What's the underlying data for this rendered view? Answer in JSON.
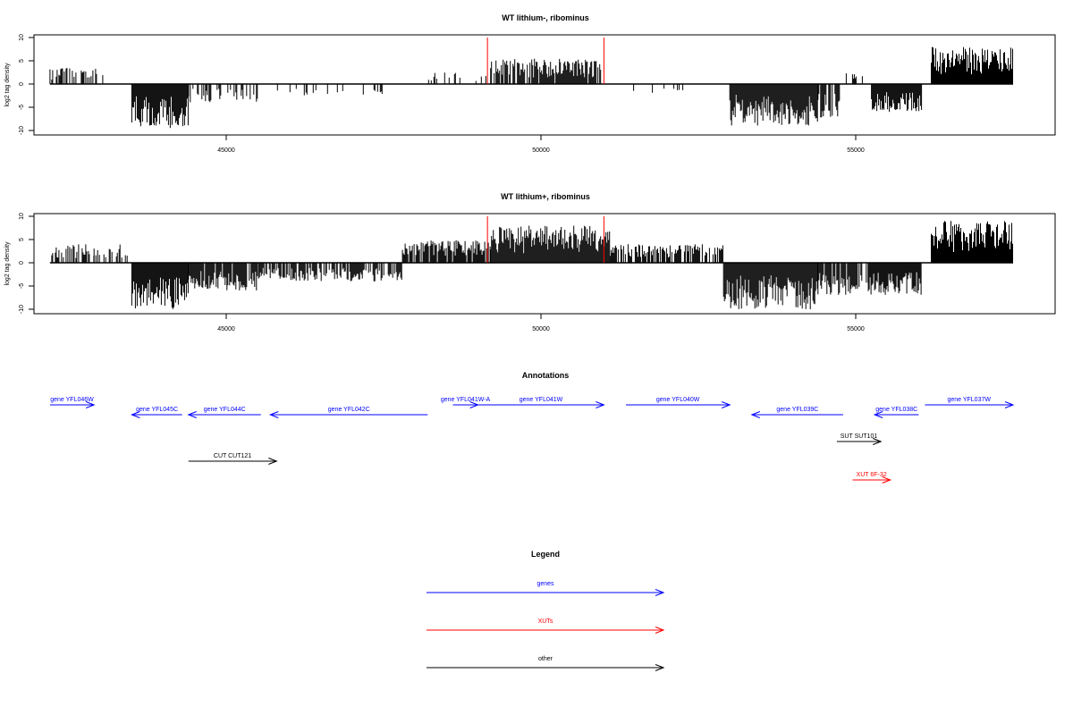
{
  "chart_data": [
    {
      "type": "bar",
      "title": "WT lithium-, ribominus",
      "ylabel": "log2 tag density",
      "xlim": [
        42000,
        58300
      ],
      "ylim": [
        -11,
        11
      ],
      "x_ticks": [
        "45000",
        "50000",
        "55000"
      ],
      "y_ticks": [
        "10",
        "5",
        "0",
        "-5",
        "-10"
      ],
      "markers": [
        49150,
        51000
      ],
      "segments": [
        {
          "from": 42200,
          "to": 43050,
          "sign": 1,
          "peak": 3.5,
          "density": 0.35
        },
        {
          "from": 43500,
          "to": 44400,
          "sign": -1,
          "peak": 9.5,
          "density": 1.0
        },
        {
          "from": 44400,
          "to": 45500,
          "sign": -1,
          "peak": 4,
          "density": 0.35
        },
        {
          "from": 45800,
          "to": 47500,
          "sign": -1,
          "peak": 2.5,
          "density": 0.15
        },
        {
          "from": 48200,
          "to": 49200,
          "sign": 1,
          "peak": 2.5,
          "density": 0.2
        },
        {
          "from": 49200,
          "to": 50950,
          "sign": 1,
          "peak": 5.5,
          "density": 0.9
        },
        {
          "from": 51400,
          "to": 52300,
          "sign": -1,
          "peak": 2,
          "density": 0.08
        },
        {
          "from": 53000,
          "to": 54400,
          "sign": -1,
          "peak": 9,
          "density": 1.0
        },
        {
          "from": 54400,
          "to": 54750,
          "sign": -1,
          "peak": 7.5,
          "density": 0.9
        },
        {
          "from": 54850,
          "to": 55150,
          "sign": 1,
          "peak": 2.5,
          "density": 0.2
        },
        {
          "from": 55250,
          "to": 56050,
          "sign": -1,
          "peak": 6,
          "density": 1.0
        },
        {
          "from": 56200,
          "to": 57500,
          "sign": 1,
          "peak": 8,
          "density": 1.0
        }
      ]
    },
    {
      "type": "bar",
      "title": "WT lithium+, ribominus",
      "ylabel": "log2 tag density",
      "xlim": [
        42000,
        58300
      ],
      "ylim": [
        -11,
        11
      ],
      "x_ticks": [
        "45000",
        "50000",
        "55000"
      ],
      "y_ticks": [
        "10",
        "5",
        "0",
        "-5",
        "-10"
      ],
      "markers": [
        49150,
        51000
      ],
      "segments": [
        {
          "from": 42200,
          "to": 42900,
          "sign": 1,
          "peak": 4,
          "density": 0.6
        },
        {
          "from": 42900,
          "to": 43450,
          "sign": 1,
          "peak": 4,
          "density": 0.6
        },
        {
          "from": 43500,
          "to": 44400,
          "sign": -1,
          "peak": 10,
          "density": 1.0
        },
        {
          "from": 44400,
          "to": 45500,
          "sign": -1,
          "peak": 6,
          "density": 0.9
        },
        {
          "from": 45500,
          "to": 47800,
          "sign": -1,
          "peak": 4,
          "density": 0.7
        },
        {
          "from": 47800,
          "to": 49200,
          "sign": 1,
          "peak": 5,
          "density": 0.9
        },
        {
          "from": 49200,
          "to": 51100,
          "sign": 1,
          "peak": 8,
          "density": 1.0
        },
        {
          "from": 51100,
          "to": 52900,
          "sign": 1,
          "peak": 4,
          "density": 0.7
        },
        {
          "from": 52900,
          "to": 54400,
          "sign": -1,
          "peak": 10,
          "density": 1.0
        },
        {
          "from": 54400,
          "to": 55200,
          "sign": -1,
          "peak": 7,
          "density": 0.8
        },
        {
          "from": 55200,
          "to": 56050,
          "sign": -1,
          "peak": 7,
          "density": 1.0
        },
        {
          "from": 56200,
          "to": 57500,
          "sign": 1,
          "peak": 9,
          "density": 1.0
        }
      ]
    }
  ],
  "annotations": {
    "title": "Annotations",
    "items": [
      {
        "label": "gene YFL046W",
        "color": "#0000ff",
        "dir": "right",
        "from": 42200,
        "to": 42900,
        "row": 0
      },
      {
        "label": "gene YFL045C",
        "color": "#0000ff",
        "dir": "left",
        "from": 43500,
        "to": 44300,
        "row": 1
      },
      {
        "label": "gene YFL044C",
        "color": "#0000ff",
        "dir": "left",
        "from": 44400,
        "to": 45550,
        "row": 1
      },
      {
        "label": "gene YFL042C",
        "color": "#0000ff",
        "dir": "left",
        "from": 45700,
        "to": 48200,
        "row": 1
      },
      {
        "label": "gene YFL041W-A",
        "color": "#0000ff",
        "dir": "right",
        "from": 48600,
        "to": 49000,
        "row": 0
      },
      {
        "label": "gene YFL041W",
        "color": "#0000ff",
        "dir": "right",
        "from": 49000,
        "to": 51000,
        "row": 0
      },
      {
        "label": "gene YFL040W",
        "color": "#0000ff",
        "dir": "right",
        "from": 51350,
        "to": 53000,
        "row": 0
      },
      {
        "label": "gene YFL039C",
        "color": "#0000ff",
        "dir": "left",
        "from": 53350,
        "to": 54800,
        "row": 1
      },
      {
        "label": "gene YFL038C",
        "color": "#0000ff",
        "dir": "left",
        "from": 55300,
        "to": 56000,
        "row": 1
      },
      {
        "label": "gene YFL037W",
        "color": "#0000ff",
        "dir": "right",
        "from": 56100,
        "to": 57500,
        "row": 0
      },
      {
        "label": "CUT CUT121",
        "color": "#000000",
        "dir": "right",
        "from": 44400,
        "to": 45800,
        "row": 3
      },
      {
        "label": "SUT SUT101",
        "color": "#000000",
        "dir": "right",
        "from": 54700,
        "to": 55400,
        "row": 2
      },
      {
        "label": "XUT 6F-32",
        "color": "#ff0000",
        "dir": "right",
        "from": 54950,
        "to": 55550,
        "row": 4
      }
    ]
  },
  "legend": {
    "title": "Legend",
    "items": [
      {
        "label": "genes",
        "color": "#0000ff"
      },
      {
        "label": "XUTs",
        "color": "#ff0000"
      },
      {
        "label": "other",
        "color": "#000000"
      }
    ]
  }
}
